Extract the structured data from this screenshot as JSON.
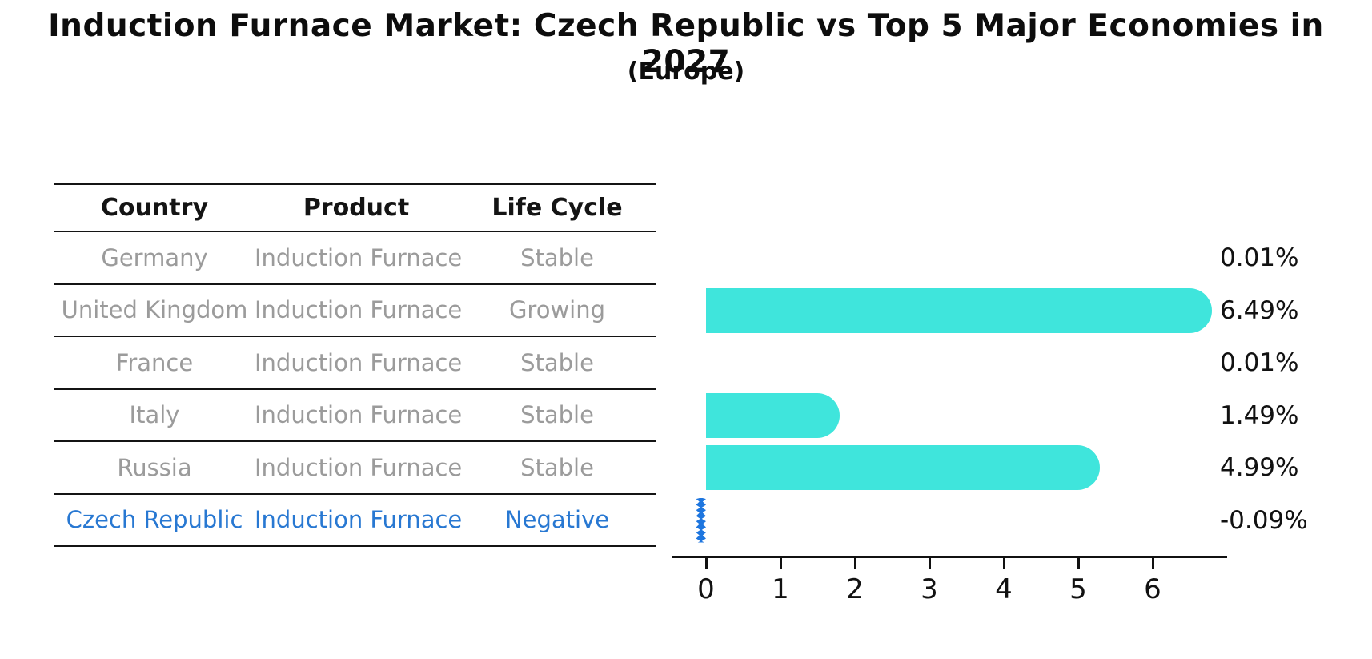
{
  "main": {
    "title": "Induction Furnace Market: Czech Republic vs Top 5 Major Economies in 2027",
    "subtitle": "(Europe)"
  },
  "table": {
    "headers": [
      "Country",
      "Product",
      "Life Cycle"
    ],
    "rows": [
      {
        "country": "Germany",
        "product": "Induction Furnace",
        "life_cycle": "Stable",
        "highlight": false
      },
      {
        "country": "United Kingdom",
        "product": "Induction Furnace",
        "life_cycle": "Growing",
        "highlight": false
      },
      {
        "country": "France",
        "product": "Induction Furnace",
        "life_cycle": "Stable",
        "highlight": false
      },
      {
        "country": "Italy",
        "product": "Induction Furnace",
        "life_cycle": "Stable",
        "highlight": false
      },
      {
        "country": "Russia",
        "product": "Induction Furnace",
        "life_cycle": "Stable",
        "highlight": false
      },
      {
        "country": "Czech Republic",
        "product": "Induction Furnace",
        "life_cycle": "Negative",
        "highlight": true
      }
    ]
  },
  "chart_data": {
    "type": "bar",
    "orientation": "horizontal",
    "title": "Induction Furnace Market: Czech Republic vs Top 5 Major Economies in 2027",
    "subtitle": "(Europe)",
    "categories": [
      "Germany",
      "United Kingdom",
      "France",
      "Italy",
      "Russia",
      "Czech Republic"
    ],
    "values": [
      0.01,
      6.49,
      0.01,
      1.49,
      4.99,
      -0.09
    ],
    "value_labels": [
      "0.01%",
      "6.49%",
      "0.01%",
      "1.49%",
      "4.99%",
      "-0.09%"
    ],
    "unit": "percent",
    "xticks": [
      0,
      1,
      2,
      3,
      4,
      5,
      6
    ],
    "xlim": [
      -0.45,
      7.0
    ],
    "grid": false,
    "legend": "none",
    "bar_color": "#3FE5DC",
    "highlight_bar_color": "#1E76DF",
    "highlight_index": 5,
    "highlight_text_color": "#2878D2"
  },
  "colors": {
    "background": "#FFFFFF",
    "text_primary": "#111111",
    "text_muted": "#9B9B9B",
    "rule": "#141414",
    "accent_cyan": "#3FE5DC",
    "accent_blue": "#1E76DF"
  }
}
